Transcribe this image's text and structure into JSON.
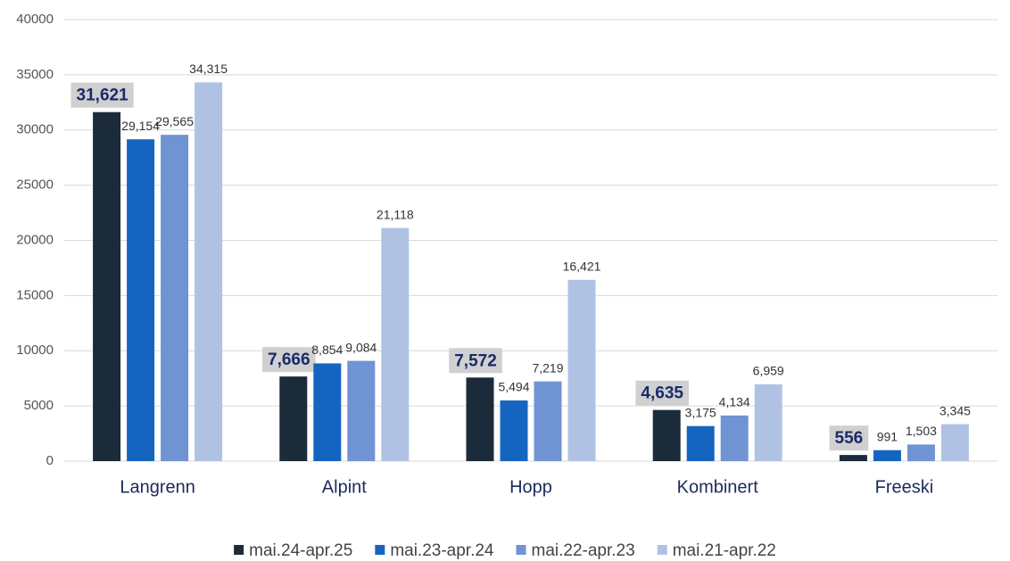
{
  "chart_data": {
    "type": "bar",
    "categories": [
      "Langrenn",
      "Alpint",
      "Hopp",
      "Kombinert",
      "Freeski"
    ],
    "series": [
      {
        "name": "mai.24-apr.25",
        "color": "#1c2b3a",
        "values": [
          31621,
          7666,
          7572,
          4635,
          556
        ],
        "value_labels": [
          "31,621",
          "7,666",
          "7,572",
          "4,635",
          "556"
        ]
      },
      {
        "name": "mai.23-apr.24",
        "color": "#1565c0",
        "values": [
          29154,
          8854,
          5494,
          3175,
          991
        ],
        "value_labels": [
          "29,154",
          "8,854",
          "5,494",
          "3,175",
          "991"
        ]
      },
      {
        "name": "mai.22-apr.23",
        "color": "#7093d3",
        "values": [
          29565,
          9084,
          7219,
          4134,
          1503
        ],
        "value_labels": [
          "29,565",
          "9,084",
          "7,219",
          "4,134",
          "1,503"
        ]
      },
      {
        "name": "mai.21-apr.22",
        "color": "#b0c2e4",
        "values": [
          34315,
          21118,
          16421,
          6959,
          3345
        ],
        "value_labels": [
          "34,315",
          "21,118",
          "16,421",
          "6,959",
          "3,345"
        ]
      }
    ],
    "ylim": [
      0,
      40000
    ],
    "yticks": [
      0,
      5000,
      10000,
      15000,
      20000,
      25000,
      30000,
      35000,
      40000
    ],
    "grid": true,
    "legend": "bottom"
  }
}
